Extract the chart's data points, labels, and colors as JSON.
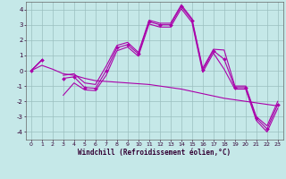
{
  "xlabel": "Windchill (Refroidissement éolien,°C)",
  "x": [
    0,
    1,
    2,
    3,
    4,
    5,
    6,
    7,
    8,
    9,
    10,
    11,
    12,
    13,
    14,
    15,
    16,
    17,
    18,
    19,
    20,
    21,
    22,
    23
  ],
  "series_main": [
    0.0,
    0.7,
    null,
    -0.5,
    -0.4,
    -1.1,
    -1.15,
    0.0,
    1.5,
    1.7,
    1.1,
    3.2,
    3.0,
    3.0,
    4.2,
    3.3,
    0.05,
    1.3,
    0.75,
    -1.1,
    -1.1,
    -3.1,
    -3.8,
    -2.2
  ],
  "series_upper": [
    0.0,
    0.7,
    null,
    -0.3,
    -0.2,
    -0.8,
    -0.9,
    0.3,
    1.65,
    1.85,
    1.2,
    3.3,
    3.1,
    3.1,
    4.3,
    3.4,
    0.15,
    1.4,
    1.35,
    -1.0,
    -1.0,
    -3.0,
    -3.6,
    -2.0
  ],
  "series_lower": [
    0.0,
    0.7,
    null,
    -1.6,
    -0.8,
    -1.25,
    -1.3,
    -0.3,
    1.3,
    1.55,
    0.95,
    3.05,
    2.85,
    2.85,
    4.05,
    3.15,
    -0.1,
    1.15,
    0.1,
    -1.2,
    -1.2,
    -3.25,
    -4.0,
    -2.45
  ],
  "series_trend": [
    0.0,
    0.35,
    0.1,
    -0.2,
    -0.3,
    -0.5,
    -0.65,
    -0.7,
    -0.75,
    -0.8,
    -0.85,
    -0.9,
    -1.0,
    -1.1,
    -1.2,
    -1.35,
    -1.5,
    -1.65,
    -1.8,
    -1.9,
    -2.0,
    -2.1,
    -2.2,
    -2.3
  ],
  "ylim": [
    -4.5,
    4.5
  ],
  "yticks": [
    -4,
    -3,
    -2,
    -1,
    0,
    1,
    2,
    3,
    4
  ],
  "xlim": [
    -0.5,
    23.5
  ],
  "bg_color": "#c5e8e8",
  "grid_color": "#9bbfbf",
  "line_color": "#aa00aa",
  "marker": "D",
  "markersize": 2.0,
  "linewidth": 0.8,
  "tick_fontsize": 4.5,
  "xlabel_fontsize": 5.5
}
